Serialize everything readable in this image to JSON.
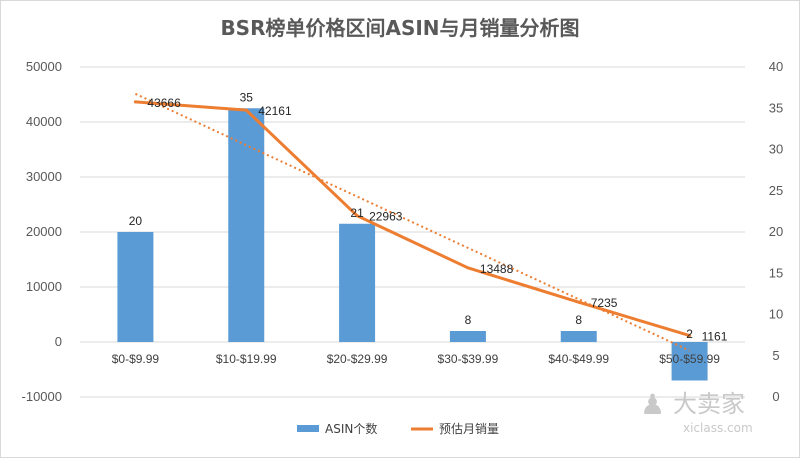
{
  "chart_data": {
    "type": "bar+line",
    "title": "BSR榜单价格区间ASIN与月销量分析图",
    "categories": [
      "$0-$9.99",
      "$10-$19.99",
      "$20-$29.99",
      "$30-$39.99",
      "$40-$49.99",
      "$50-$59.99"
    ],
    "series": [
      {
        "name": "ASIN个数",
        "type": "bar",
        "axis": "left",
        "values": [
          20,
          35,
          21,
          8,
          8,
          2
        ],
        "color": "#5B9BD5"
      },
      {
        "name": "预估月销量",
        "type": "line",
        "axis": "right",
        "values": [
          43666,
          42161,
          22963,
          13488,
          7235,
          1161
        ],
        "color": "#ED7D31",
        "trendline": "linear"
      }
    ],
    "bar_labels": [
      "20",
      "35",
      "21",
      "8",
      "8",
      "2"
    ],
    "line_labels": [
      "43666",
      "42161",
      "22963",
      "13488",
      "7235",
      "1161"
    ],
    "left_axis": {
      "min": -10000,
      "max": 50000,
      "step": 10000,
      "ticks": [
        "-10000",
        "0",
        "10000",
        "20000",
        "30000",
        "40000",
        "50000"
      ]
    },
    "right_axis": {
      "min": 0,
      "max": 40,
      "step": 5,
      "ticks": [
        "0",
        "5",
        "10",
        "15",
        "20",
        "25",
        "30",
        "35",
        "40"
      ]
    },
    "grid": true,
    "legend_position": "bottom"
  },
  "watermark": {
    "text": "大卖家",
    "subtext": "xiclass.com"
  }
}
